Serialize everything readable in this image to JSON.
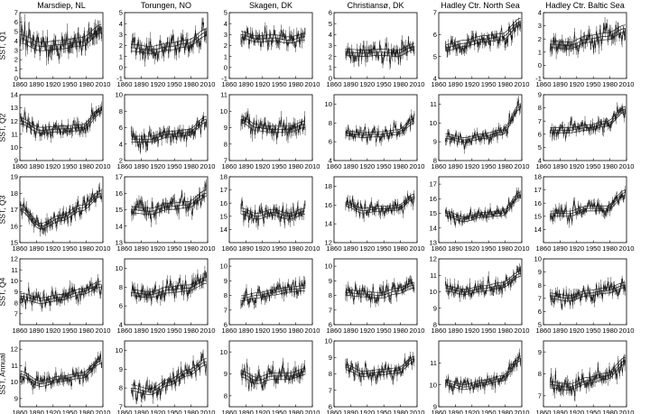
{
  "chart_data": {
    "type": "line",
    "layout": "small-multiples 5 rows x 6 columns",
    "columns": [
      "Marsdiep, NL",
      "Torungen, NO",
      "Skagen, DK",
      "Christiansø, DK",
      "Hadley Ctr. North Sea",
      "Hadley Ctr. Baltic Sea"
    ],
    "rows": [
      "SST, Q1",
      "SST, Q2",
      "SST, Q3",
      "SST, Q4",
      "SST, Annual"
    ],
    "x_ticks": [
      1860,
      1890,
      1920,
      1950,
      1980,
      2010
    ],
    "xlim": [
      1860,
      2010
    ],
    "panels": [
      [
        {
          "ylim": [
            0,
            7
          ],
          "yticks": [
            0,
            1,
            2,
            3,
            4,
            5,
            6,
            7
          ],
          "start": 1861,
          "end": 2008,
          "level": [
            4.2,
            3.4,
            3.6,
            3.9,
            5.3
          ],
          "noise": 1.4,
          "seed": 11
        },
        {
          "ylim": [
            -1,
            5
          ],
          "yticks": [
            -1,
            0,
            1,
            2,
            3,
            4,
            5
          ],
          "start": 1872,
          "end": 2008,
          "level": [
            1.8,
            1.6,
            1.9,
            2.2,
            3.2
          ],
          "noise": 1.0,
          "seed": 12
        },
        {
          "ylim": [
            -1,
            5
          ],
          "yticks": [
            -1,
            0,
            1,
            2,
            3,
            4,
            5
          ],
          "start": 1881,
          "end": 1997,
          "level": [
            3.0,
            2.6,
            2.7,
            2.5,
            2.8
          ],
          "noise": 0.9,
          "seed": 13
        },
        {
          "ylim": [
            0,
            6
          ],
          "yticks": [
            0,
            1,
            2,
            3,
            4,
            5,
            6
          ],
          "start": 1881,
          "end": 2005,
          "level": [
            2.4,
            2.3,
            2.4,
            2.3,
            2.9
          ],
          "noise": 0.9,
          "seed": 14
        },
        {
          "ylim": [
            4,
            7
          ],
          "yticks": [
            4,
            5,
            6,
            7
          ],
          "start": 1872,
          "end": 2008,
          "level": [
            5.4,
            5.6,
            5.8,
            5.9,
            6.6
          ],
          "noise": 0.45,
          "seed": 15
        },
        {
          "ylim": [
            -1,
            4
          ],
          "yticks": [
            -1,
            0,
            1,
            2,
            3,
            4
          ],
          "start": 1872,
          "end": 2008,
          "level": [
            1.6,
            1.5,
            2.0,
            2.2,
            2.8
          ],
          "noise": 0.8,
          "seed": 16
        }
      ],
      [
        {
          "ylim": [
            9,
            14
          ],
          "yticks": [
            9,
            10,
            11,
            12,
            13,
            14
          ],
          "start": 1861,
          "end": 2008,
          "level": [
            12.0,
            11.3,
            11.4,
            11.5,
            12.8
          ],
          "noise": 0.7,
          "seed": 21
        },
        {
          "ylim": [
            2,
            10
          ],
          "yticks": [
            2,
            4,
            6,
            8,
            10
          ],
          "start": 1872,
          "end": 2008,
          "level": [
            4.6,
            4.6,
            5.2,
            5.4,
            7.0
          ],
          "noise": 1.1,
          "seed": 22
        },
        {
          "ylim": [
            7,
            11
          ],
          "yticks": [
            7,
            8,
            9,
            10,
            11
          ],
          "start": 1881,
          "end": 1997,
          "level": [
            9.5,
            9.0,
            8.9,
            8.9,
            9.2
          ],
          "noise": 0.6,
          "seed": 23
        },
        {
          "ylim": [
            4,
            11
          ],
          "yticks": [
            4,
            6,
            8,
            10
          ],
          "start": 1881,
          "end": 2005,
          "level": [
            6.9,
            6.7,
            6.8,
            7.0,
            8.2
          ],
          "noise": 0.8,
          "seed": 24
        },
        {
          "ylim": [
            8,
            11.5
          ],
          "yticks": [
            8,
            9,
            10,
            11
          ],
          "start": 1872,
          "end": 2008,
          "level": [
            9.3,
            9.1,
            9.3,
            9.5,
            10.9
          ],
          "noise": 0.4,
          "seed": 25
        },
        {
          "ylim": [
            4,
            9
          ],
          "yticks": [
            4,
            5,
            6,
            7,
            8,
            9
          ],
          "start": 1872,
          "end": 2008,
          "level": [
            6.3,
            6.3,
            6.5,
            6.8,
            7.9
          ],
          "noise": 0.6,
          "seed": 26
        }
      ],
      [
        {
          "ylim": [
            15,
            19
          ],
          "yticks": [
            15,
            16,
            17,
            18,
            19
          ],
          "start": 1861,
          "end": 2008,
          "level": [
            17.1,
            16.0,
            16.5,
            17.1,
            18.0
          ],
          "noise": 0.55,
          "seed": 31
        },
        {
          "ylim": [
            13,
            17
          ],
          "yticks": [
            13,
            14,
            15,
            16,
            17
          ],
          "start": 1872,
          "end": 2008,
          "level": [
            15.0,
            14.9,
            15.2,
            15.3,
            16.0
          ],
          "noise": 0.6,
          "seed": 32
        },
        {
          "ylim": [
            13,
            18
          ],
          "yticks": [
            14,
            15,
            16,
            17,
            18
          ],
          "start": 1881,
          "end": 1997,
          "level": [
            15.4,
            15.0,
            15.3,
            15.0,
            15.4
          ],
          "noise": 0.7,
          "seed": 33
        },
        {
          "ylim": [
            12,
            19
          ],
          "yticks": [
            12,
            14,
            16,
            18
          ],
          "start": 1881,
          "end": 2005,
          "level": [
            16.1,
            15.4,
            15.6,
            15.7,
            16.9
          ],
          "noise": 0.8,
          "seed": 34
        },
        {
          "ylim": [
            13,
            17.5
          ],
          "yticks": [
            13,
            14,
            15,
            16,
            17
          ],
          "start": 1872,
          "end": 2008,
          "level": [
            15.0,
            14.6,
            14.9,
            15.0,
            16.3
          ],
          "noise": 0.5,
          "seed": 35
        },
        {
          "ylim": [
            13,
            18
          ],
          "yticks": [
            14,
            15,
            16,
            17,
            18
          ],
          "start": 1872,
          "end": 2008,
          "level": [
            15.2,
            15.2,
            15.6,
            15.6,
            16.8
          ],
          "noise": 0.6,
          "seed": 36
        }
      ],
      [
        {
          "ylim": [
            6,
            12
          ],
          "yticks": [
            7,
            8,
            9,
            10,
            11,
            12
          ],
          "start": 1861,
          "end": 2008,
          "level": [
            8.6,
            8.2,
            8.5,
            9.0,
            9.7
          ],
          "noise": 0.8,
          "seed": 41
        },
        {
          "ylim": [
            4,
            11
          ],
          "yticks": [
            4,
            6,
            8,
            10
          ],
          "start": 1872,
          "end": 2008,
          "level": [
            7.4,
            7.2,
            7.7,
            7.9,
            8.7
          ],
          "noise": 1.0,
          "seed": 42
        },
        {
          "ylim": [
            6,
            10.5
          ],
          "yticks": [
            6,
            7,
            8,
            9,
            10
          ],
          "start": 1881,
          "end": 1997,
          "level": [
            7.8,
            8.0,
            8.2,
            8.4,
            8.5
          ],
          "noise": 0.55,
          "seed": 43
        },
        {
          "ylim": [
            6,
            10.5
          ],
          "yticks": [
            6,
            7,
            8,
            9,
            10
          ],
          "start": 1881,
          "end": 2005,
          "level": [
            8.2,
            8.1,
            8.0,
            8.3,
            8.7
          ],
          "noise": 0.6,
          "seed": 44
        },
        {
          "ylim": [
            8,
            12
          ],
          "yticks": [
            8,
            9,
            10,
            11,
            12
          ],
          "start": 1872,
          "end": 2008,
          "level": [
            10.2,
            10.0,
            10.2,
            10.4,
            11.1
          ],
          "noise": 0.5,
          "seed": 45
        },
        {
          "ylim": [
            5,
            10
          ],
          "yticks": [
            5,
            6,
            7,
            8,
            9,
            10
          ],
          "start": 1872,
          "end": 2008,
          "level": [
            7.2,
            7.0,
            7.4,
            7.6,
            8.0
          ],
          "noise": 0.65,
          "seed": 46
        }
      ],
      [
        {
          "ylim": [
            8.5,
            12.5
          ],
          "yticks": [
            9,
            10,
            11,
            12
          ],
          "start": 1861,
          "end": 2008,
          "level": [
            10.5,
            9.9,
            10.2,
            10.4,
            11.3
          ],
          "noise": 0.5,
          "seed": 51
        },
        {
          "ylim": [
            7,
            10.5
          ],
          "yticks": [
            7,
            8,
            9,
            10
          ],
          "start": 1872,
          "end": 2008,
          "level": [
            8.0,
            7.8,
            8.3,
            8.8,
            9.4
          ],
          "noise": 0.5,
          "seed": 52
        },
        {
          "ylim": [
            7.5,
            10.5
          ],
          "yticks": [
            8,
            9,
            10
          ],
          "start": 1881,
          "end": 1997,
          "level": [
            9.0,
            8.7,
            8.9,
            8.9,
            9.1
          ],
          "noise": 0.45,
          "seed": 53
        },
        {
          "ylim": [
            6,
            10
          ],
          "yticks": [
            6,
            7,
            8,
            9,
            10
          ],
          "start": 1881,
          "end": 2005,
          "level": [
            8.4,
            8.0,
            8.1,
            8.2,
            8.9
          ],
          "noise": 0.5,
          "seed": 54
        },
        {
          "ylim": [
            9,
            12
          ],
          "yticks": [
            9,
            10,
            11
          ],
          "start": 1872,
          "end": 2008,
          "level": [
            10.1,
            9.9,
            10.1,
            10.3,
            11.2
          ],
          "noise": 0.35,
          "seed": 55
        },
        {
          "ylim": [
            6.5,
            9.5
          ],
          "yticks": [
            7,
            8,
            9
          ],
          "start": 1872,
          "end": 2008,
          "level": [
            7.5,
            7.4,
            7.7,
            7.9,
            8.6
          ],
          "noise": 0.45,
          "seed": 56
        }
      ]
    ]
  }
}
